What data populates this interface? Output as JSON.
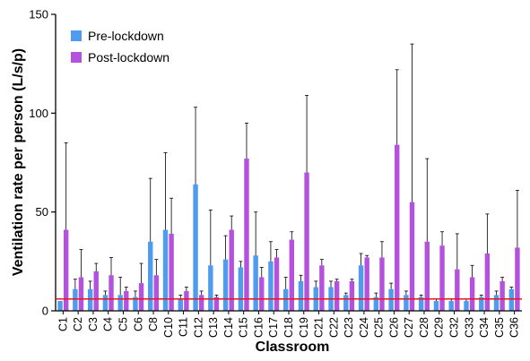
{
  "chart_data": {
    "type": "bar",
    "xlabel": "Classroom",
    "ylabel": "Ventilation rate per person (L/s/p)",
    "ylim": [
      0,
      150
    ],
    "yticks": [
      "0",
      "50",
      "100",
      "150"
    ],
    "grid": false,
    "legend_position": "top-left",
    "reference_line": {
      "y": 6,
      "color": "#e8141f"
    },
    "categories": [
      "C1",
      "C2",
      "C3",
      "C4",
      "C5",
      "C6",
      "C8",
      "C10",
      "C11",
      "C12",
      "C13",
      "C14",
      "C15",
      "C16",
      "C17",
      "C18",
      "C19",
      "C21",
      "C22",
      "C23",
      "C24",
      "C25",
      "C26",
      "C27",
      "C28",
      "C29",
      "C32",
      "C33",
      "C34",
      "C35",
      "C36"
    ],
    "series": [
      {
        "name": "Pre-lockdown",
        "color": "#4f9bef",
        "values": [
          5,
          11,
          11,
          8,
          8,
          7,
          35,
          41,
          6,
          64,
          23,
          26,
          22,
          28,
          25,
          11,
          15,
          12,
          12,
          8,
          23,
          7,
          11,
          8,
          7,
          5,
          5,
          5,
          7,
          8,
          11
        ],
        "error_upper": [
          5,
          16,
          15,
          10,
          17,
          10,
          67,
          80,
          8,
          103,
          51,
          38,
          25,
          50,
          35,
          17,
          18,
          15,
          15,
          9,
          29,
          9,
          14,
          10,
          8,
          6,
          6,
          6,
          8,
          10,
          12
        ]
      },
      {
        "name": "Post-lockdown",
        "color": "#b452de",
        "values": [
          41,
          17,
          20,
          18,
          10,
          14,
          18,
          39,
          10,
          8,
          7,
          41,
          77,
          17,
          27,
          36,
          70,
          23,
          15,
          15,
          27,
          27,
          84,
          55,
          35,
          33,
          21,
          17,
          29,
          15,
          32
        ],
        "error_upper": [
          85,
          31,
          24,
          27,
          12,
          24,
          26,
          57,
          12,
          10,
          8,
          48,
          95,
          22,
          31,
          40,
          109,
          26,
          16,
          16,
          28,
          35,
          122,
          135,
          77,
          40,
          39,
          23,
          49,
          17,
          61
        ]
      }
    ]
  }
}
